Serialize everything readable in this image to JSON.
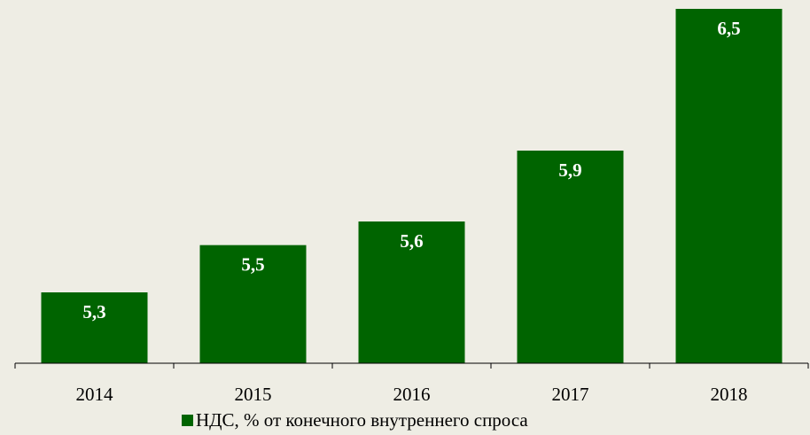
{
  "chart_data": {
    "type": "bar",
    "categories": [
      "2014",
      "2015",
      "2016",
      "2017",
      "2018"
    ],
    "series": [
      {
        "name": "НДС, % от конечного внутреннего спроса",
        "color": "#006400",
        "values": [
          5.3,
          5.5,
          5.6,
          5.9,
          6.5
        ],
        "value_labels": [
          "5,3",
          "5,5",
          "5,6",
          "5,9",
          "6,5"
        ]
      }
    ],
    "ylim": [
      5,
      6.5
    ],
    "legend": "bottom"
  }
}
